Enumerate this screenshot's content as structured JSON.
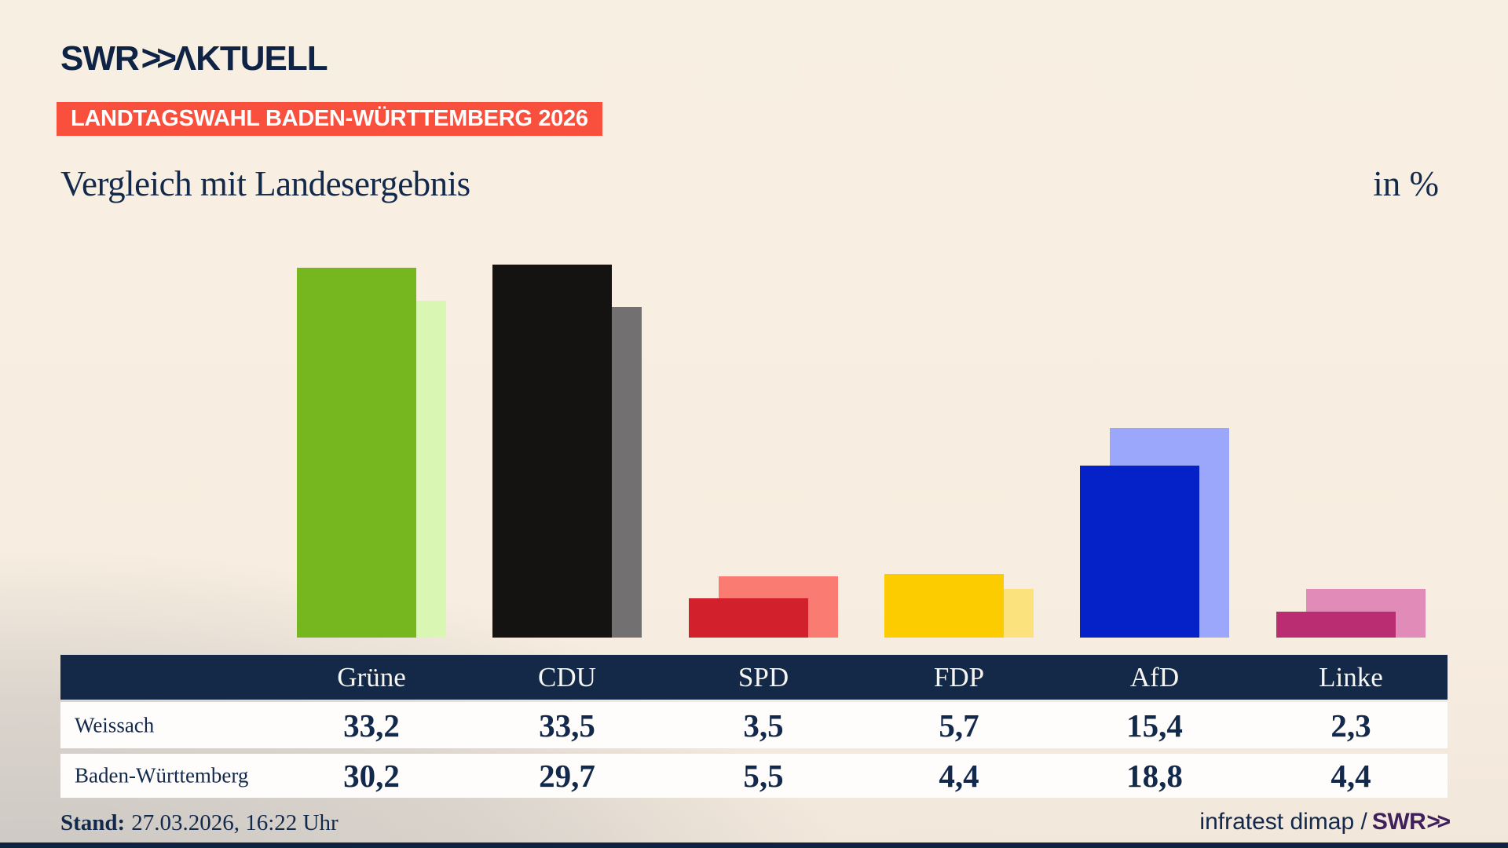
{
  "logo": {
    "brand": "SWR",
    "chevrons": ">>",
    "suffix": "ΛKTUELL"
  },
  "banner": {
    "label": "LANDTAGSWAHL BADEN-WÜRTTEMBERG 2026",
    "background": "#f8503c"
  },
  "headline": "Vergleich mit Landesergebnis",
  "unit_label": "in %",
  "parties": [
    {
      "name": "Grüne",
      "color": "#76b61e",
      "color_light": "#d9f7b2"
    },
    {
      "name": "CDU",
      "color": "#141312",
      "color_light": "#727070"
    },
    {
      "name": "SPD",
      "color": "#d2202c",
      "color_light": "#fa7b72"
    },
    {
      "name": "FDP",
      "color": "#fccb00",
      "color_light": "#fce27d"
    },
    {
      "name": "AfD",
      "color": "#0522c8",
      "color_light": "#9aa7fb"
    },
    {
      "name": "Linke",
      "color": "#ba2d73",
      "color_light": "#e18cb8"
    }
  ],
  "chart_data": {
    "type": "bar",
    "title": "Vergleich mit Landesergebnis",
    "unit": "in %",
    "categories": [
      "Grüne",
      "CDU",
      "SPD",
      "FDP",
      "AfD",
      "Linke"
    ],
    "series": [
      {
        "name": "Weissach",
        "values": [
          33.2,
          33.5,
          3.5,
          5.7,
          15.4,
          2.3
        ]
      },
      {
        "name": "Baden-Württemberg",
        "values": [
          30.2,
          29.7,
          5.5,
          4.4,
          18.8,
          4.4
        ]
      }
    ],
    "ylim": [
      0,
      35
    ],
    "grid": false,
    "legend_position": "table-below",
    "decimal_separator": ","
  },
  "footer": {
    "stand_label": "Stand:",
    "stand_value": "27.03.2026, 16:22 Uhr",
    "source": "infratest dimap",
    "separator": "/",
    "source_logo_brand": "SWR",
    "source_logo_chevrons": ">>"
  },
  "colors": {
    "navy": "#13294b",
    "banner_red": "#f8503c",
    "logo_purple": "#3f1f5c",
    "background_cream": "#f8efe3",
    "background_gray": "#c6c3bf"
  }
}
